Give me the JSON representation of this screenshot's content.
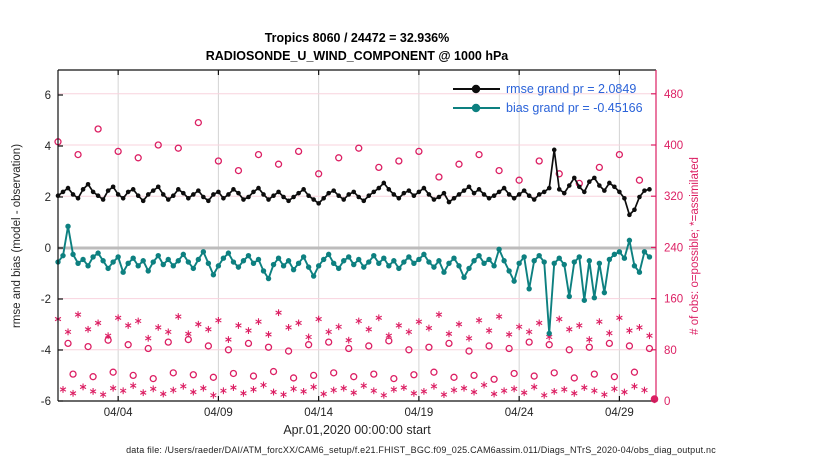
{
  "figure": {
    "title_line1": "Tropics 8060 / 24472 = 32.936%",
    "title_line2": "RADIOSONDE_U_WIND_COMPONENT @ 1000 hPa",
    "xlabel": "Apr.01,2020 00:00:00 start",
    "ylabel_left": "rmse and bias (model - observation)",
    "ylabel_right": "# of obs: o=possible; *=assimilated",
    "footer": "data file: /Users/raeder/DAI/ATM_forcXX/CAM6_setup/f.e21.FHIST_BGC.f09_025.CAM6assim.011/Diags_NTrS_2020-04/obs_diag_output.nc",
    "legend": [
      {
        "label": "rmse grand pr = 2.0849"
      },
      {
        "label": "bias grand pr = -0.45166"
      }
    ]
  },
  "chart_data": {
    "type": "line+scatter",
    "title": "Tropics 8060 / 24472 = 32.936% — RADIOSONDE_U_WIND_COMPONENT @ 1000 hPa",
    "rmse_grand_mean": 2.0849,
    "bias_grand_mean": -0.45166,
    "colors": {
      "rmse": "#0d0d0d",
      "bias": "#0d8080",
      "obs": "#dc1f63",
      "grid_pink": "#f8d3de",
      "grid_gray": "#d4d4d4",
      "zero_line": "#bdbcbc",
      "legend_text": "#2b63d9",
      "tick_text": "#262626"
    },
    "x_axis": {
      "label": "Apr.01,2020 00:00:00 start",
      "tick_labels": [
        "04/04",
        "04/09",
        "04/14",
        "04/19",
        "04/24",
        "04/29"
      ],
      "tick_days": [
        3,
        8,
        13,
        18,
        23,
        28
      ],
      "range_days": [
        0,
        29.85
      ]
    },
    "y_left": {
      "label": "rmse and bias (model - observation)",
      "ticks": [
        -6,
        -4,
        -2,
        0,
        2,
        4,
        6
      ],
      "range": [
        -6,
        7
      ]
    },
    "y_right": {
      "label": "# of obs: o=possible; *=assimilated",
      "ticks": [
        0,
        80,
        160,
        240,
        320,
        400,
        480
      ],
      "range": [
        0,
        517
      ]
    },
    "series": {
      "time_start_days": 0,
      "time_step_days": 0.25,
      "rmse": [
        2.05,
        2.2,
        2.35,
        2.1,
        1.95,
        2.3,
        2.5,
        2.2,
        2.05,
        1.9,
        2.25,
        2.4,
        2.1,
        1.95,
        2.2,
        2.3,
        2.05,
        1.85,
        2.1,
        2.25,
        2.4,
        2.1,
        1.9,
        2.05,
        2.3,
        2.15,
        1.95,
        2.1,
        2.25,
        2.0,
        1.85,
        2.1,
        2.2,
        1.95,
        2.1,
        2.3,
        2.15,
        1.9,
        2.0,
        2.2,
        2.35,
        2.1,
        1.9,
        2.05,
        2.2,
        2.0,
        1.85,
        2.0,
        2.15,
        2.3,
        2.05,
        1.9,
        1.75,
        1.95,
        2.15,
        2.25,
        2.05,
        1.9,
        2.1,
        2.2,
        2.0,
        1.85,
        2.05,
        2.2,
        2.35,
        2.55,
        2.3,
        2.1,
        1.95,
        2.15,
        2.25,
        2.05,
        2.2,
        2.35,
        2.1,
        1.9,
        2.0,
        2.15,
        1.8,
        1.95,
        2.1,
        2.25,
        2.4,
        2.15,
        2.3,
        2.1,
        1.95,
        2.05,
        2.2,
        2.35,
        2.1,
        1.95,
        2.1,
        2.25,
        2.05,
        1.9,
        2.1,
        2.2,
        2.35,
        3.85,
        2.3,
        2.15,
        2.45,
        2.75,
        2.4,
        2.2,
        2.6,
        2.75,
        2.45,
        2.25,
        2.55,
        2.4,
        2.2,
        1.95,
        1.3,
        1.5,
        2.0,
        2.25,
        2.3
      ],
      "bias": [
        -0.55,
        -0.3,
        0.85,
        -0.25,
        -0.6,
        -0.45,
        -0.7,
        -0.35,
        -0.2,
        -0.5,
        -0.8,
        -0.55,
        -0.35,
        -0.95,
        -0.6,
        -0.4,
        -0.7,
        -0.5,
        -0.9,
        -0.55,
        -0.3,
        -0.65,
        -0.45,
        -0.7,
        -0.5,
        -0.25,
        -0.55,
        -0.8,
        -0.45,
        -0.15,
        -0.6,
        -1.05,
        -0.7,
        -0.4,
        -0.2,
        -0.55,
        -0.75,
        -0.5,
        -0.3,
        -0.6,
        -0.45,
        -0.9,
        -1.2,
        -0.65,
        -0.4,
        -0.7,
        -0.5,
        -0.85,
        -0.6,
        -0.35,
        -0.75,
        -1.1,
        -0.7,
        -0.45,
        -0.25,
        -0.6,
        -0.8,
        -0.5,
        -0.35,
        -0.65,
        -0.45,
        -0.75,
        -0.55,
        -0.3,
        -0.6,
        -0.4,
        -0.7,
        -0.5,
        -0.8,
        -0.55,
        -0.35,
        -0.6,
        -0.45,
        -0.25,
        -0.55,
        -0.75,
        -0.5,
        -0.95,
        -0.6,
        -0.4,
        -0.7,
        -1.15,
        -0.8,
        -0.5,
        -0.3,
        -0.6,
        -0.45,
        -0.7,
        -0.05,
        -0.5,
        -0.9,
        -1.3,
        -0.6,
        -0.35,
        -1.6,
        -0.5,
        -0.3,
        -0.55,
        -3.35,
        -0.6,
        -0.4,
        -0.65,
        -1.9,
        -0.55,
        -0.35,
        -2.05,
        -0.5,
        -1.95,
        -0.6,
        -1.75,
        -0.45,
        -0.25,
        -0.15,
        -0.4,
        0.3,
        -0.7,
        -0.95,
        -0.15,
        -0.35
      ]
    },
    "obs_counts": {
      "possible_00z": {
        "t_start": 0,
        "t_step": 1,
        "marker": "circle",
        "values": [
          405,
          385,
          425,
          390,
          380,
          400,
          395,
          435,
          375,
          360,
          385,
          370,
          390,
          355,
          380,
          395,
          365,
          375,
          390,
          350,
          370,
          385,
          360,
          345,
          375,
          355,
          340,
          365,
          385,
          345
        ]
      },
      "possible_12z": {
        "t_start": 0.5,
        "t_step": 1,
        "marker": "circle",
        "values": [
          90,
          85,
          95,
          88,
          82,
          92,
          96,
          86,
          80,
          90,
          84,
          78,
          88,
          92,
          82,
          86,
          94,
          80,
          84,
          90,
          78,
          86,
          82,
          92,
          88,
          80,
          84,
          90,
          86,
          82
        ]
      },
      "possible_off_hours": {
        "t_start": 0.75,
        "t_step": 1,
        "marker": "circle",
        "values": [
          42,
          38,
          45,
          40,
          35,
          44,
          41,
          37,
          43,
          39,
          46,
          36,
          40,
          44,
          38,
          42,
          35,
          41,
          45,
          37,
          40,
          34,
          43,
          39,
          44,
          36,
          42,
          38,
          45
        ]
      },
      "assimilated_00_12z": {
        "t_start": 0,
        "t_step": 0.5,
        "marker": "asterisk",
        "values": [
          128,
          108,
          135,
          112,
          122,
          102,
          130,
          118,
          125,
          98,
          115,
          108,
          132,
          105,
          120,
          112,
          126,
          96,
          118,
          110,
          124,
          104,
          138,
          115,
          122,
          100,
          128,
          108,
          116,
          95,
          125,
          112,
          130,
          102,
          118,
          108,
          124,
          114,
          135,
          105,
          120,
          98,
          126,
          110,
          132,
          104,
          116,
          108,
          122,
          100,
          128,
          112,
          118,
          96,
          124,
          106,
          130,
          110,
          115,
          102
        ]
      },
      "assimilated_off_hours": {
        "t_start": 0.25,
        "t_step": 0.5,
        "marker": "asterisk",
        "values": [
          18,
          12,
          22,
          15,
          10,
          20,
          16,
          24,
          13,
          19,
          11,
          17,
          23,
          14,
          20,
          9,
          16,
          21,
          12,
          18,
          25,
          14,
          10,
          19,
          15,
          22,
          11,
          17,
          20,
          13,
          24,
          16,
          9,
          18,
          21,
          12,
          15,
          23,
          10,
          17,
          20,
          14,
          25,
          11,
          16,
          19,
          13,
          22,
          9,
          15,
          18,
          12,
          21,
          16,
          10,
          19,
          14,
          23,
          17
        ]
      },
      "final_point": {
        "t": 29.75,
        "possible": 3,
        "assimilated": 2
      }
    }
  }
}
